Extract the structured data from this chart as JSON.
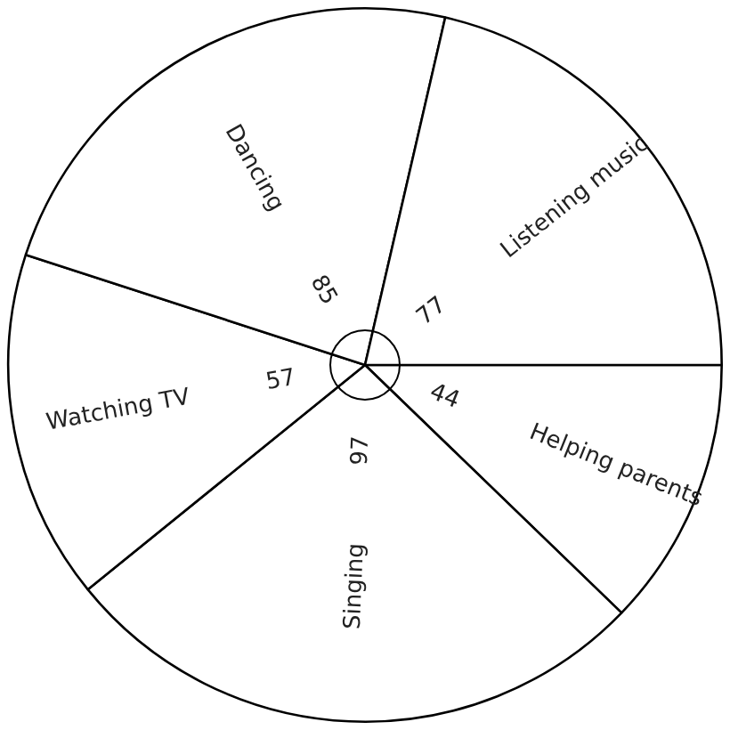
{
  "chart_data": {
    "type": "pie",
    "categories": [
      "Helping parents",
      "Singing",
      "Watching TV",
      "Dancing",
      "Listening music"
    ],
    "values": [
      44,
      97,
      57,
      85,
      77
    ],
    "colors": [
      "#ffffff",
      "#ffffff",
      "#ffffff",
      "#ffffff",
      "#ffffff"
    ],
    "data_labels": true
  }
}
